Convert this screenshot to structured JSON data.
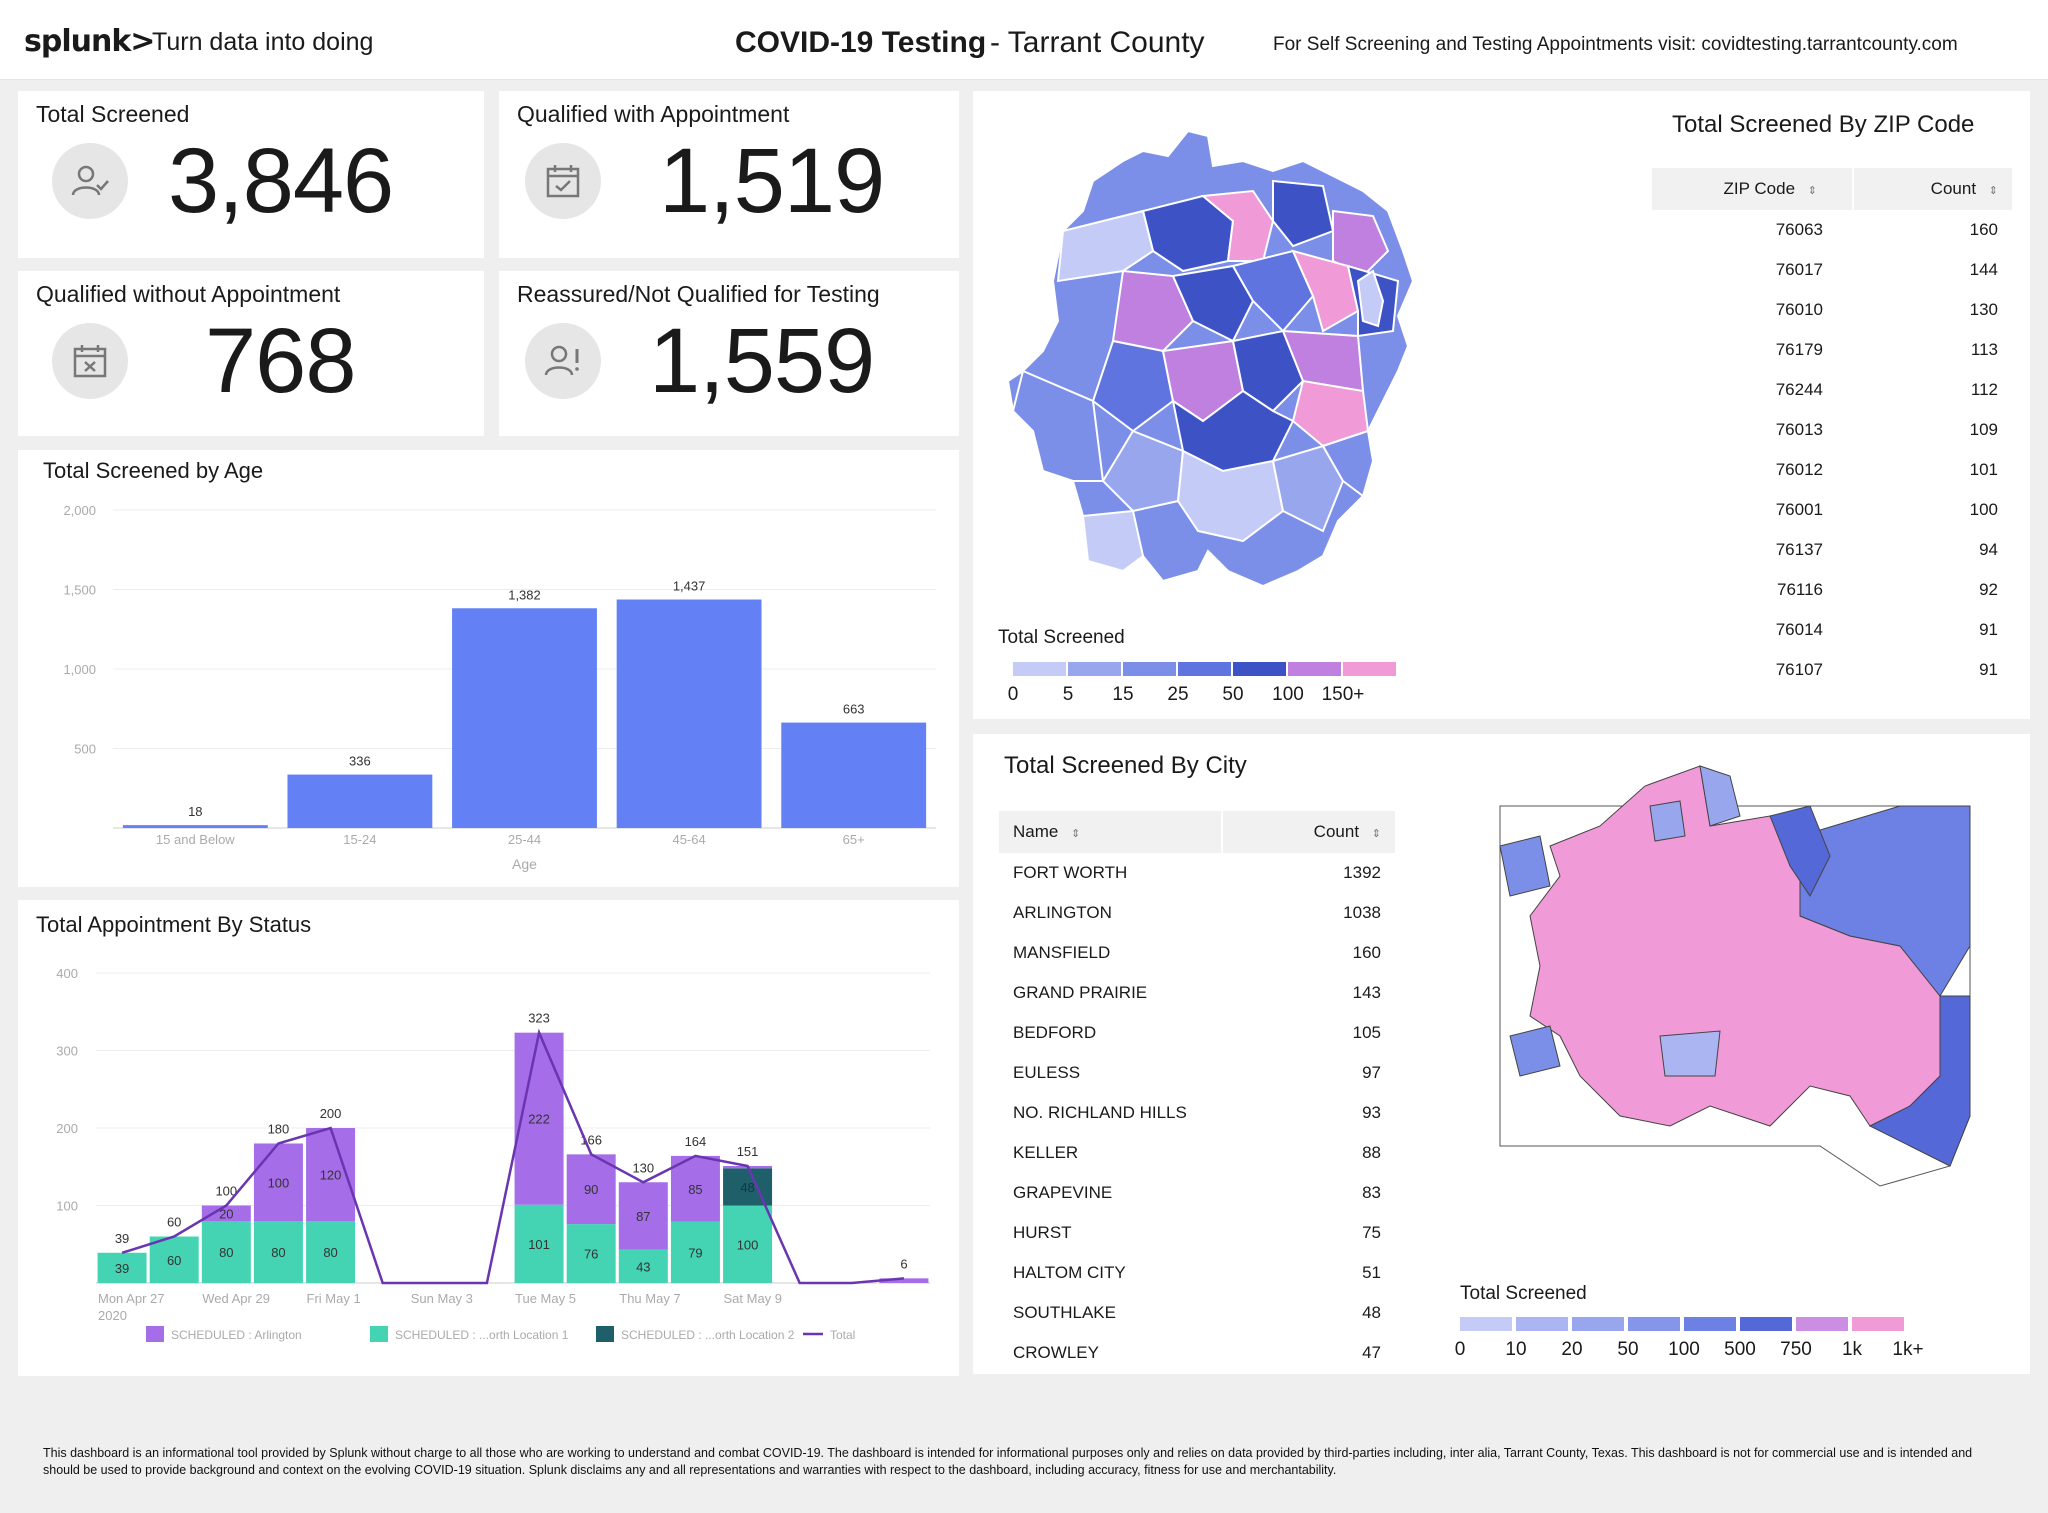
{
  "header": {
    "logo": "splunk>",
    "tagline": "Turn data into doing",
    "title": "COVID-19 Testing",
    "subtitle": "- Tarrant County",
    "visit_text": "For Self Screening and Testing Appointments visit: covidtesting.tarrantcounty.com"
  },
  "kpis": [
    {
      "title": "Total Screened",
      "value": "3,846",
      "icon": "user-check-icon"
    },
    {
      "title": "Qualified with Appointment",
      "value": "1,519",
      "icon": "calendar-check-icon"
    },
    {
      "title": "Qualified without Appointment",
      "value": "768",
      "icon": "calendar-x-icon"
    },
    {
      "title": "Reassured/Not Qualified for Testing",
      "value": "1,559",
      "icon": "user-alert-icon"
    }
  ],
  "age_panel": {
    "title": "Total Screened by Age"
  },
  "status_panel": {
    "title": "Total Appointment By Status"
  },
  "zip_panel": {
    "title": "Total Screened By ZIP Code",
    "col_zip": "ZIP Code",
    "col_count": "Count",
    "rows": [
      {
        "zip": "76063",
        "count": "160"
      },
      {
        "zip": "76017",
        "count": "144"
      },
      {
        "zip": "76010",
        "count": "130"
      },
      {
        "zip": "76179",
        "count": "113"
      },
      {
        "zip": "76244",
        "count": "112"
      },
      {
        "zip": "76013",
        "count": "109"
      },
      {
        "zip": "76012",
        "count": "101"
      },
      {
        "zip": "76001",
        "count": "100"
      },
      {
        "zip": "76137",
        "count": "94"
      },
      {
        "zip": "76116",
        "count": "92"
      },
      {
        "zip": "76014",
        "count": "91"
      },
      {
        "zip": "76107",
        "count": "91"
      }
    ],
    "legend_title": "Total Screened",
    "legend_labels": [
      "0",
      "5",
      "15",
      "25",
      "50",
      "100",
      "150+"
    ],
    "legend_colors": [
      "#c5cbf7",
      "#98a6ee",
      "#7b8ee8",
      "#5f74df",
      "#3d53c5",
      "#c080e0",
      "#f09ad8"
    ]
  },
  "city_panel": {
    "title": "Total Screened By City",
    "col_name": "Name",
    "col_count": "Count",
    "rows": [
      {
        "name": "FORT WORTH",
        "count": "1392"
      },
      {
        "name": "ARLINGTON",
        "count": "1038"
      },
      {
        "name": "MANSFIELD",
        "count": "160"
      },
      {
        "name": "GRAND PRAIRIE",
        "count": "143"
      },
      {
        "name": "BEDFORD",
        "count": "105"
      },
      {
        "name": "EULESS",
        "count": "97"
      },
      {
        "name": "NO. RICHLAND HILLS",
        "count": "93"
      },
      {
        "name": "KELLER",
        "count": "88"
      },
      {
        "name": "GRAPEVINE",
        "count": "83"
      },
      {
        "name": "HURST",
        "count": "75"
      },
      {
        "name": "HALTOM CITY",
        "count": "51"
      },
      {
        "name": "SOUTHLAKE",
        "count": "48"
      },
      {
        "name": "CROWLEY",
        "count": "47"
      }
    ],
    "legend_title": "Total Screened",
    "legend_labels": [
      "0",
      "10",
      "20",
      "50",
      "100",
      "500",
      "750",
      "1k",
      "1k+"
    ],
    "legend_colors": [
      "#c5cbf7",
      "#aab5f2",
      "#98a6ee",
      "#8495ea",
      "#6d80e3",
      "#5468d8",
      "#cc8ee2",
      "#f09ad8"
    ]
  },
  "footer": "This dashboard is an informational tool provided by Splunk without charge to all those who are working to understand and combat COVID-19. The dashboard is intended for informational purposes only and relies on data provided by third-parties including, inter alia, Tarrant County, Texas. This dashboard is not for commercial use and is intended and should be used to provide background and context on the evolving COVID-19 situation.  Splunk disclaims any and all representations and warranties with respect to the dashboard, including accuracy, fitness for use and merchantability.",
  "chart_data": [
    {
      "type": "bar",
      "title": "Total Screened by Age",
      "xlabel": "Age",
      "ylabel": "",
      "categories": [
        "15 and Below",
        "15-24",
        "25-44",
        "45-64",
        "65+"
      ],
      "values": [
        18,
        336,
        1382,
        1437,
        663
      ],
      "ylim": [
        0,
        2000
      ],
      "yticks": [
        "500",
        "1,000",
        "1,500",
        "2,000"
      ],
      "data_labels": [
        "18",
        "336",
        "1,382",
        "1,437",
        "663"
      ],
      "color": "#6381f4",
      "grid": true
    },
    {
      "type": "bar",
      "title": "Total Appointment By Status",
      "stacked": true,
      "ylim": [
        0,
        400
      ],
      "yticks": [
        "100",
        "200",
        "300",
        "400"
      ],
      "x_tick_labels": [
        "Mon Apr 27",
        "Wed Apr 29",
        "Fri May 1",
        "Sun May 3",
        "Tue May 5",
        "Thu May 7",
        "Sat May 9"
      ],
      "x_year_label": "2020",
      "series": [
        {
          "name": "SCHEDULED : Arlington",
          "color": "#a56ee8",
          "values": [
            0,
            0,
            20,
            100,
            120,
            0,
            0,
            0,
            222,
            90,
            87,
            85,
            3,
            0,
            0,
            6
          ]
        },
        {
          "name": "SCHEDULED : ...orth Location 1",
          "color": "#44d4b4",
          "values": [
            39,
            60,
            80,
            80,
            80,
            0,
            0,
            0,
            101,
            76,
            43,
            79,
            100,
            0,
            0,
            0
          ]
        },
        {
          "name": "SCHEDULED : ...orth Location 2",
          "color": "#1e5f6a",
          "values": [
            0,
            0,
            0,
            0,
            0,
            0,
            0,
            0,
            0,
            0,
            0,
            0,
            48,
            0,
            0,
            0
          ]
        }
      ],
      "line": {
        "name": "Total",
        "color": "#6a35b0",
        "values": [
          39,
          60,
          100,
          180,
          200,
          0,
          0,
          0,
          323,
          166,
          130,
          164,
          151,
          0,
          0,
          6
        ]
      },
      "totals_labels": [
        "39",
        "60",
        "100",
        "180",
        "200",
        "",
        "",
        "",
        "323",
        "166",
        "130",
        "164",
        "151",
        "",
        "",
        "6"
      ],
      "grid": true
    }
  ]
}
